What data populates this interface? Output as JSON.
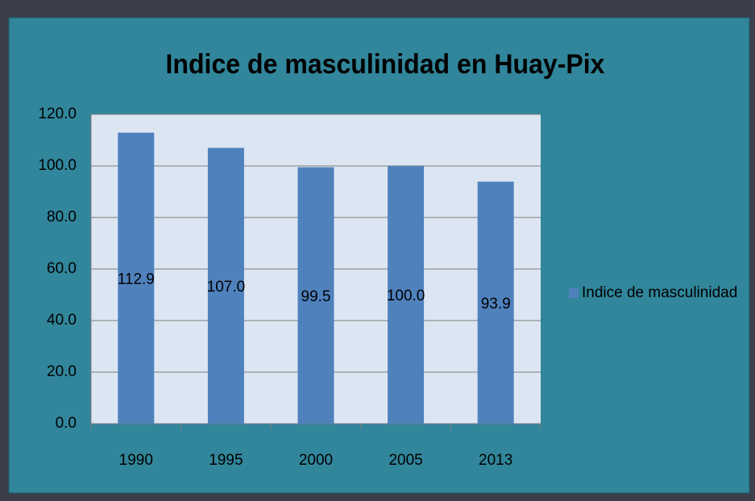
{
  "chart_data": {
    "type": "bar",
    "title": "Indice de masculinidad en Huay-Pix",
    "categories": [
      "1990",
      "1995",
      "2000",
      "2005",
      "2013"
    ],
    "series": [
      {
        "name": "Indice de masculinidad",
        "color": "#4f81bd",
        "values": [
          112.9,
          107.0,
          99.5,
          100.0,
          93.9
        ],
        "value_labels": [
          "112.9",
          "107.0",
          "99.5",
          "100.0",
          "93.9"
        ]
      }
    ],
    "ylim": [
      0,
      120
    ],
    "yticks": [
      {
        "value": 0,
        "label": "0.0"
      },
      {
        "value": 20,
        "label": "20.0"
      },
      {
        "value": 40,
        "label": "40.0"
      },
      {
        "value": 60,
        "label": "60.0"
      },
      {
        "value": 80,
        "label": "80.0"
      },
      {
        "value": 100,
        "label": "100.0"
      },
      {
        "value": 120,
        "label": "120.0"
      }
    ],
    "grid": true,
    "legend": "right"
  }
}
